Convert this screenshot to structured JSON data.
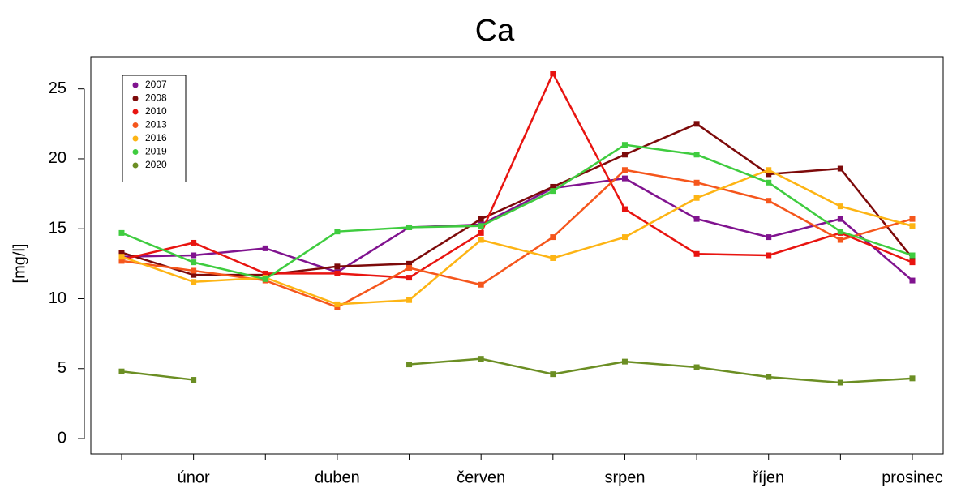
{
  "chart_data": {
    "type": "line",
    "title": "Ca",
    "y_label": "[mg/l]",
    "categories": [
      null,
      "únor",
      null,
      "duben",
      null,
      "červen",
      null,
      "srpen",
      null,
      "říjen",
      null,
      "prosinec"
    ],
    "ylim": [
      -1.1,
      27.3
    ],
    "yticks": [
      0,
      5,
      10,
      15,
      20,
      25
    ],
    "legend": "top-left",
    "series": [
      {
        "name": "2007",
        "color": "#80138f",
        "values": [
          13.0,
          13.1,
          13.6,
          11.9,
          15.1,
          15.3,
          17.9,
          18.6,
          15.7,
          14.4,
          15.7,
          11.3
        ]
      },
      {
        "name": "2008",
        "color": "#7d0a0a",
        "values": [
          13.3,
          11.7,
          11.7,
          12.3,
          12.5,
          15.7,
          18.0,
          20.3,
          22.5,
          18.9,
          19.3,
          12.9
        ]
      },
      {
        "name": "2010",
        "color": "#e81410",
        "values": [
          12.8,
          14.0,
          11.8,
          11.8,
          11.5,
          14.7,
          26.1,
          16.4,
          13.2,
          13.1,
          14.7,
          12.6
        ]
      },
      {
        "name": "2013",
        "color": "#f5561c",
        "values": [
          12.7,
          12.0,
          11.3,
          9.4,
          12.2,
          11.0,
          14.4,
          19.2,
          18.3,
          17.0,
          14.2,
          15.7
        ]
      },
      {
        "name": "2016",
        "color": "#fdb414",
        "values": [
          13.0,
          11.2,
          11.5,
          9.6,
          9.9,
          14.2,
          12.9,
          14.4,
          17.2,
          19.2,
          16.6,
          15.2
        ]
      },
      {
        "name": "2019",
        "color": "#3fcc3f",
        "values": [
          14.7,
          12.6,
          11.4,
          14.8,
          15.1,
          15.2,
          17.7,
          21.0,
          20.3,
          18.3,
          14.8,
          13.1
        ]
      },
      {
        "name": "2020",
        "color": "#6b8e23",
        "values": [
          4.8,
          4.2,
          null,
          null,
          5.3,
          5.7,
          4.6,
          5.5,
          5.1,
          4.4,
          4.0,
          4.3
        ]
      }
    ]
  }
}
